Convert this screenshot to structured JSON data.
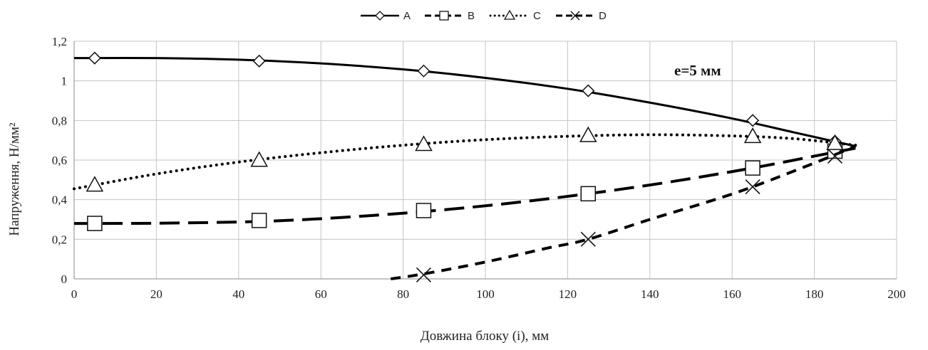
{
  "chart_data": {
    "type": "line",
    "title": "",
    "xlabel": "Довжина блоку (і), мм",
    "ylabel": "Напруження, Н/мм²",
    "xlim": [
      0,
      200
    ],
    "ylim": [
      0,
      1.2
    ],
    "x_ticks": [
      0,
      20,
      40,
      60,
      80,
      100,
      120,
      140,
      160,
      180,
      200
    ],
    "x_tick_labels": [
      "0",
      "20",
      "40",
      "60",
      "80",
      "100",
      "120",
      "140",
      "160",
      "180",
      "200"
    ],
    "y_ticks": [
      0,
      0.2,
      0.4,
      0.6,
      0.8,
      1.0,
      1.2
    ],
    "y_tick_labels": [
      "0",
      "0,2",
      "0,4",
      "0,6",
      "0,8",
      "1",
      "1,2"
    ],
    "grid": true,
    "legend_position": "top-center",
    "annotation": "e=5 мм",
    "series": [
      {
        "name": "A",
        "marker": "diamond",
        "dash": "solid",
        "points": [
          [
            5,
            1.115
          ],
          [
            45,
            1.1
          ],
          [
            85,
            1.05
          ],
          [
            125,
            0.95
          ],
          [
            165,
            0.8
          ],
          [
            185,
            0.695
          ]
        ],
        "curve": [
          [
            0,
            1.115
          ],
          [
            20,
            1.115
          ],
          [
            40,
            1.107
          ],
          [
            60,
            1.088
          ],
          [
            80,
            1.058
          ],
          [
            100,
            1.015
          ],
          [
            120,
            0.96
          ],
          [
            140,
            0.89
          ],
          [
            160,
            0.81
          ],
          [
            175,
            0.74
          ],
          [
            190,
            0.67
          ]
        ]
      },
      {
        "name": "B",
        "marker": "square",
        "dash": "long-dash",
        "points": [
          [
            5,
            0.28
          ],
          [
            45,
            0.295
          ],
          [
            85,
            0.345
          ],
          [
            125,
            0.43
          ],
          [
            165,
            0.56
          ],
          [
            185,
            0.645
          ]
        ],
        "curve": [
          [
            0,
            0.28
          ],
          [
            20,
            0.281
          ],
          [
            45,
            0.29
          ],
          [
            65,
            0.31
          ],
          [
            85,
            0.34
          ],
          [
            105,
            0.38
          ],
          [
            125,
            0.43
          ],
          [
            145,
            0.49
          ],
          [
            165,
            0.56
          ],
          [
            180,
            0.62
          ],
          [
            190,
            0.66
          ]
        ]
      },
      {
        "name": "C",
        "marker": "triangle",
        "dash": "dotted",
        "points": [
          [
            5,
            0.475
          ],
          [
            45,
            0.6
          ],
          [
            85,
            0.68
          ],
          [
            125,
            0.725
          ],
          [
            165,
            0.72
          ],
          [
            185,
            0.685
          ]
        ],
        "curve": [
          [
            0,
            0.455
          ],
          [
            20,
            0.53
          ],
          [
            40,
            0.59
          ],
          [
            60,
            0.637
          ],
          [
            80,
            0.675
          ],
          [
            100,
            0.703
          ],
          [
            120,
            0.72
          ],
          [
            140,
            0.728
          ],
          [
            160,
            0.722
          ],
          [
            175,
            0.708
          ],
          [
            190,
            0.675
          ]
        ]
      },
      {
        "name": "D",
        "marker": "x",
        "dash": "dash",
        "points": [
          [
            85,
            0.02
          ],
          [
            125,
            0.2
          ],
          [
            165,
            0.465
          ],
          [
            185,
            0.62
          ]
        ],
        "curve": [
          [
            77,
            0.0
          ],
          [
            85,
            0.025
          ],
          [
            100,
            0.085
          ],
          [
            115,
            0.155
          ],
          [
            125,
            0.2
          ],
          [
            140,
            0.3
          ],
          [
            155,
            0.395
          ],
          [
            165,
            0.465
          ],
          [
            180,
            0.585
          ],
          [
            190,
            0.67
          ]
        ]
      }
    ]
  }
}
